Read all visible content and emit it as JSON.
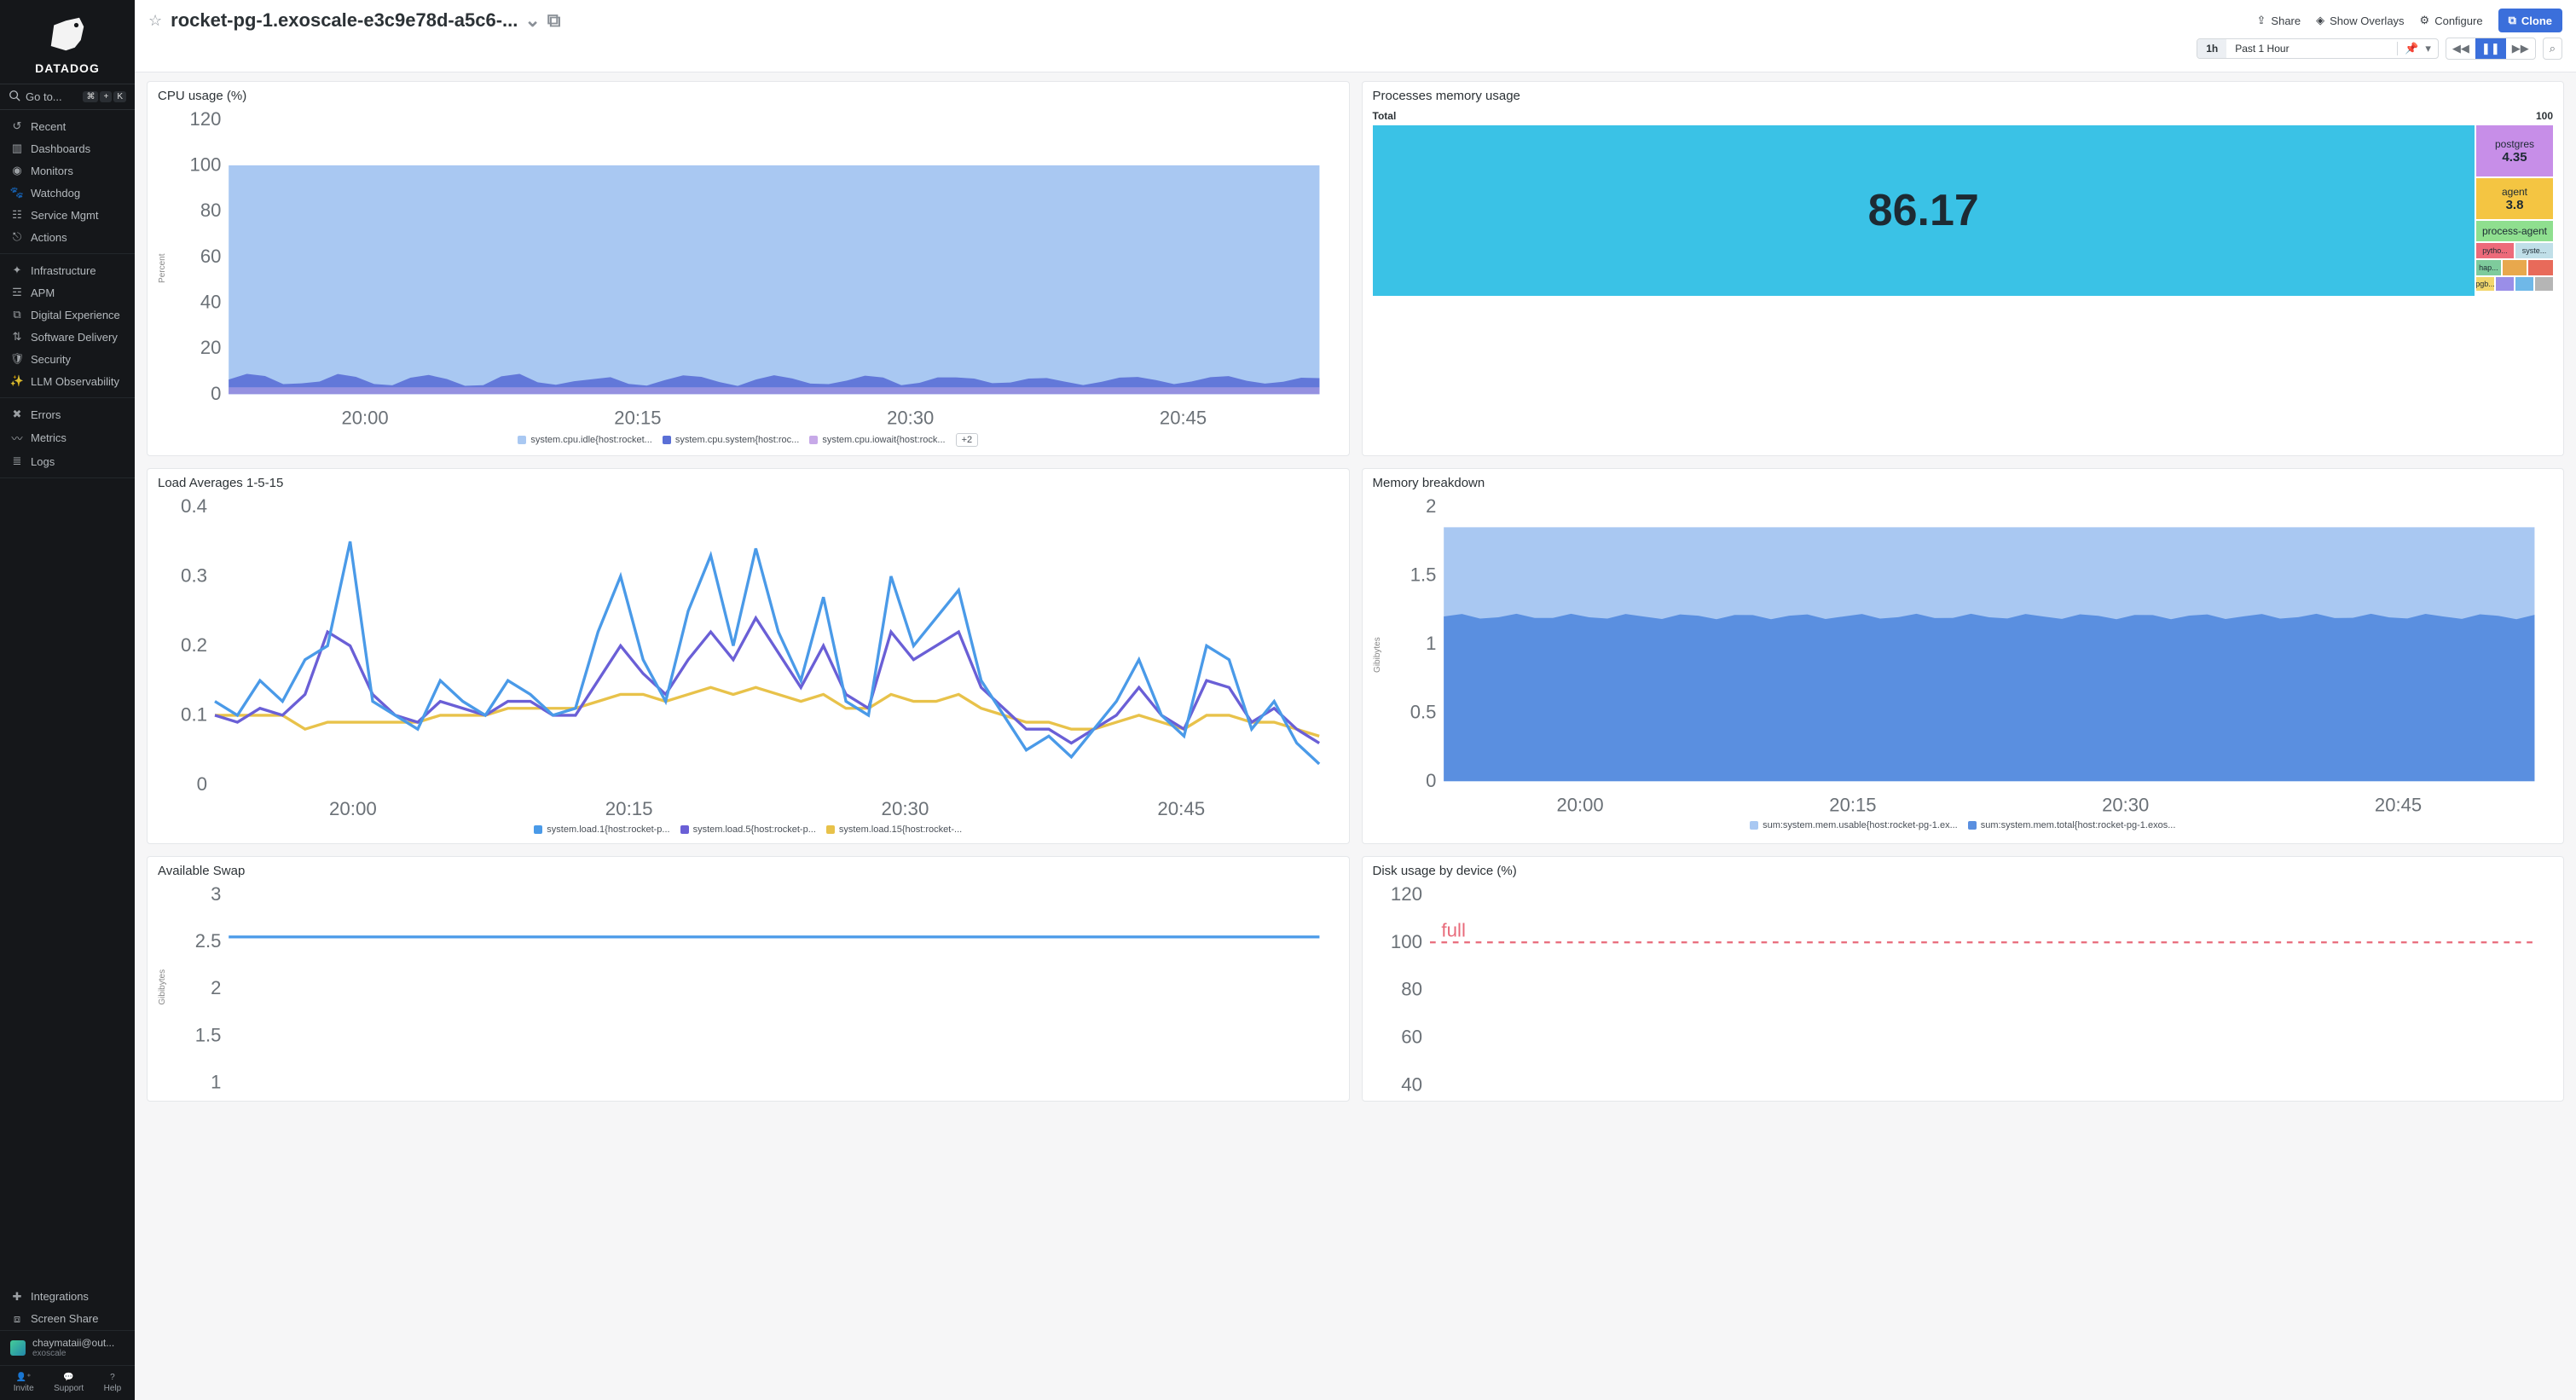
{
  "brand": "DATADOG",
  "search_placeholder": "Go to...",
  "kbd_keys": [
    "⌘",
    "+",
    "K"
  ],
  "nav": {
    "group1": [
      {
        "icon": "recent",
        "label": "Recent"
      },
      {
        "icon": "dashboards",
        "label": "Dashboards"
      },
      {
        "icon": "monitors",
        "label": "Monitors"
      },
      {
        "icon": "watchdog",
        "label": "Watchdog"
      },
      {
        "icon": "servicemgmt",
        "label": "Service Mgmt"
      },
      {
        "icon": "actions",
        "label": "Actions"
      }
    ],
    "group2": [
      {
        "icon": "infra",
        "label": "Infrastructure"
      },
      {
        "icon": "apm",
        "label": "APM"
      },
      {
        "icon": "digital",
        "label": "Digital Experience"
      },
      {
        "icon": "software",
        "label": "Software Delivery"
      },
      {
        "icon": "security",
        "label": "Security"
      },
      {
        "icon": "llm",
        "label": "LLM Observability"
      }
    ],
    "group3": [
      {
        "icon": "errors",
        "label": "Errors"
      },
      {
        "icon": "metrics",
        "label": "Metrics"
      },
      {
        "icon": "logs",
        "label": "Logs"
      }
    ],
    "bottom": [
      {
        "icon": "integrations",
        "label": "Integrations"
      },
      {
        "icon": "screenshare",
        "label": "Screen Share"
      }
    ]
  },
  "user": {
    "email": "chaymataii@out...",
    "org": "exoscale"
  },
  "help_row": [
    {
      "icon": "invite",
      "label": "Invite"
    },
    {
      "icon": "support",
      "label": "Support"
    },
    {
      "icon": "help",
      "label": "Help"
    }
  ],
  "header": {
    "title": "rocket-pg-1.exoscale-e3c9e78d-a5c6-...",
    "actions": {
      "share": "Share",
      "overlays": "Show Overlays",
      "configure": "Configure",
      "clone": "Clone"
    },
    "time": {
      "short": "1h",
      "label": "Past 1 Hour"
    }
  },
  "panels": {
    "cpu": {
      "title": "CPU usage (%)",
      "ylabel": "Percent",
      "ylim": [
        0,
        120
      ],
      "yticks": [
        0,
        20,
        40,
        60,
        80,
        100,
        120
      ],
      "xticks": [
        "20:00",
        "20:15",
        "20:30",
        "20:45"
      ],
      "colors": {
        "idle": "#a9c8f2",
        "system": "#5a6fd6",
        "iowait": "#c7a9e8"
      },
      "legend": [
        {
          "color": "#a9c8f2",
          "label": "system.cpu.idle{host:rocket..."
        },
        {
          "color": "#5a6fd6",
          "label": "system.cpu.system{host:roc..."
        },
        {
          "color": "#c7a9e8",
          "label": "system.cpu.iowait{host:rock..."
        }
      ],
      "legend_extra": "+2",
      "idle_level": 100,
      "system_level": 5,
      "iowait_level": 3
    },
    "procmem": {
      "title": "Processes memory usage",
      "total_label": "Total",
      "total_value": "100",
      "big": {
        "value": "86.17",
        "color": "#3ac2e6"
      },
      "cells": [
        {
          "label": "postgres",
          "value": "4.35",
          "color": "#c78ee8",
          "h": 60
        },
        {
          "label": "agent",
          "value": "3.8",
          "color": "#f4c542",
          "h": 48
        },
        {
          "label": "process-agent",
          "value": "",
          "color": "#8fdf8f",
          "h": 24
        },
        {
          "row": [
            {
              "label": "pytho...",
              "color": "#ed6a7a"
            },
            {
              "label": "syste...",
              "color": "#c0dfe8"
            }
          ],
          "h": 18
        },
        {
          "row": [
            {
              "label": "hap...",
              "color": "#7ecb9c"
            },
            {
              "label": "",
              "color": "#e8a84d"
            },
            {
              "label": "",
              "color": "#e86a5a"
            }
          ],
          "h": 18
        },
        {
          "row": [
            {
              "label": "pgb...",
              "color": "#f2d66b"
            },
            {
              "label": "",
              "color": "#9a8ee8"
            },
            {
              "label": "",
              "color": "#6fb8e8"
            },
            {
              "label": "",
              "color": "#b5b5b5"
            }
          ],
          "h": 16
        }
      ]
    },
    "load": {
      "title": "Load Averages 1-5-15",
      "ylim": [
        0,
        0.4
      ],
      "yticks": [
        0,
        0.1,
        0.2,
        0.3,
        0.4
      ],
      "xticks": [
        "20:00",
        "20:15",
        "20:30",
        "20:45"
      ],
      "colors": {
        "l1": "#4a9ae8",
        "l5": "#6a5fd6",
        "l15": "#e8c24a"
      },
      "legend": [
        {
          "color": "#4a9ae8",
          "label": "system.load.1{host:rocket-p..."
        },
        {
          "color": "#6a5fd6",
          "label": "system.load.5{host:rocket-p..."
        },
        {
          "color": "#e8c24a",
          "label": "system.load.15{host:rocket-..."
        }
      ],
      "series": {
        "l1": [
          0.12,
          0.1,
          0.15,
          0.12,
          0.18,
          0.2,
          0.35,
          0.12,
          0.1,
          0.08,
          0.15,
          0.12,
          0.1,
          0.15,
          0.13,
          0.1,
          0.11,
          0.22,
          0.3,
          0.18,
          0.12,
          0.25,
          0.33,
          0.2,
          0.34,
          0.22,
          0.15,
          0.27,
          0.12,
          0.1,
          0.3,
          0.2,
          0.24,
          0.28,
          0.15,
          0.1,
          0.05,
          0.07,
          0.04,
          0.08,
          0.12,
          0.18,
          0.1,
          0.07,
          0.2,
          0.18,
          0.08,
          0.12,
          0.06,
          0.03
        ],
        "l5": [
          0.1,
          0.09,
          0.11,
          0.1,
          0.13,
          0.22,
          0.2,
          0.13,
          0.1,
          0.09,
          0.12,
          0.11,
          0.1,
          0.12,
          0.12,
          0.1,
          0.1,
          0.15,
          0.2,
          0.16,
          0.13,
          0.18,
          0.22,
          0.18,
          0.24,
          0.19,
          0.14,
          0.2,
          0.13,
          0.11,
          0.22,
          0.18,
          0.2,
          0.22,
          0.14,
          0.11,
          0.08,
          0.08,
          0.06,
          0.08,
          0.1,
          0.14,
          0.1,
          0.08,
          0.15,
          0.14,
          0.09,
          0.11,
          0.08,
          0.06
        ],
        "l15": [
          0.1,
          0.1,
          0.1,
          0.1,
          0.08,
          0.09,
          0.09,
          0.09,
          0.09,
          0.09,
          0.1,
          0.1,
          0.1,
          0.11,
          0.11,
          0.11,
          0.11,
          0.12,
          0.13,
          0.13,
          0.12,
          0.13,
          0.14,
          0.13,
          0.14,
          0.13,
          0.12,
          0.13,
          0.11,
          0.11,
          0.13,
          0.12,
          0.12,
          0.13,
          0.11,
          0.1,
          0.09,
          0.09,
          0.08,
          0.08,
          0.09,
          0.1,
          0.09,
          0.08,
          0.1,
          0.1,
          0.09,
          0.09,
          0.08,
          0.07
        ]
      }
    },
    "membreak": {
      "title": "Memory breakdown",
      "ylabel": "Gibibytes",
      "ylim": [
        0,
        2
      ],
      "yticks": [
        0,
        0.5,
        1,
        1.5,
        2
      ],
      "xticks": [
        "20:00",
        "20:15",
        "20:30",
        "20:45"
      ],
      "usable_level": 1.2,
      "total_level": 1.85,
      "colors": {
        "usable": "#5a8fe0",
        "total": "#a9c8f2"
      },
      "legend": [
        {
          "color": "#a9c8f2",
          "label": "sum:system.mem.usable{host:rocket-pg-1.ex..."
        },
        {
          "color": "#5a8fe0",
          "label": "sum:system.mem.total{host:rocket-pg-1.exos..."
        }
      ]
    },
    "swap": {
      "title": "Available Swap",
      "ylabel": "Gibibytes",
      "ylim": [
        1,
        3
      ],
      "yticks": [
        1,
        1.5,
        2,
        2.5,
        3
      ],
      "line_level": 2.55,
      "color": "#4a9ae8"
    },
    "disk": {
      "title": "Disk usage by device (%)",
      "ylim": [
        40,
        120
      ],
      "yticks": [
        40,
        60,
        80,
        100,
        120
      ],
      "full_label": "full",
      "full_level": 100,
      "full_color": "#e86a7a"
    }
  }
}
